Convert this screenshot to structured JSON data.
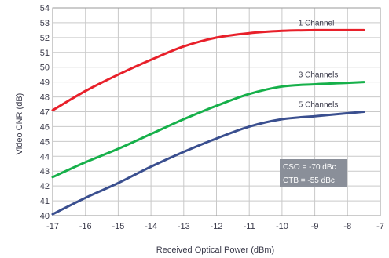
{
  "chart_data": {
    "type": "line",
    "title": "",
    "xlabel": "Received Optical Power (dBm)",
    "ylabel": "Video CNR (dB)",
    "xlim": [
      -17,
      -7
    ],
    "ylim": [
      40,
      54
    ],
    "x_ticks": [
      -17,
      -16,
      -15,
      -14,
      -13,
      -12,
      -11,
      -10,
      -9,
      -8,
      -7
    ],
    "y_ticks": [
      40,
      41,
      42,
      43,
      44,
      45,
      46,
      47,
      48,
      49,
      50,
      51,
      52,
      53,
      54
    ],
    "grid": true,
    "series": [
      {
        "name": "1 Channel",
        "color": "#e8202a",
        "x": [
          -17,
          -16,
          -15,
          -14,
          -13,
          -12,
          -11,
          -10,
          -9,
          -8,
          -7.5
        ],
        "y": [
          47.1,
          48.4,
          49.5,
          50.5,
          51.4,
          52.0,
          52.3,
          52.45,
          52.5,
          52.5,
          52.5
        ]
      },
      {
        "name": "3 Channels",
        "color": "#16b04a",
        "x": [
          -17,
          -16,
          -15,
          -14,
          -13,
          -12,
          -11,
          -10,
          -9,
          -8,
          -7.5
        ],
        "y": [
          42.6,
          43.6,
          44.5,
          45.5,
          46.5,
          47.4,
          48.2,
          48.7,
          48.85,
          48.95,
          49.0
        ]
      },
      {
        "name": "5 Channels",
        "color": "#3a4f8f",
        "x": [
          -17,
          -16,
          -15,
          -14,
          -13,
          -12,
          -11,
          -10,
          -9,
          -8,
          -7.5
        ],
        "y": [
          40.1,
          41.2,
          42.2,
          43.3,
          44.3,
          45.2,
          46.0,
          46.5,
          46.7,
          46.9,
          47.0
        ]
      }
    ],
    "annotations": [
      "CSO = -70 dBc",
      "CTB = -55 dBc"
    ]
  }
}
